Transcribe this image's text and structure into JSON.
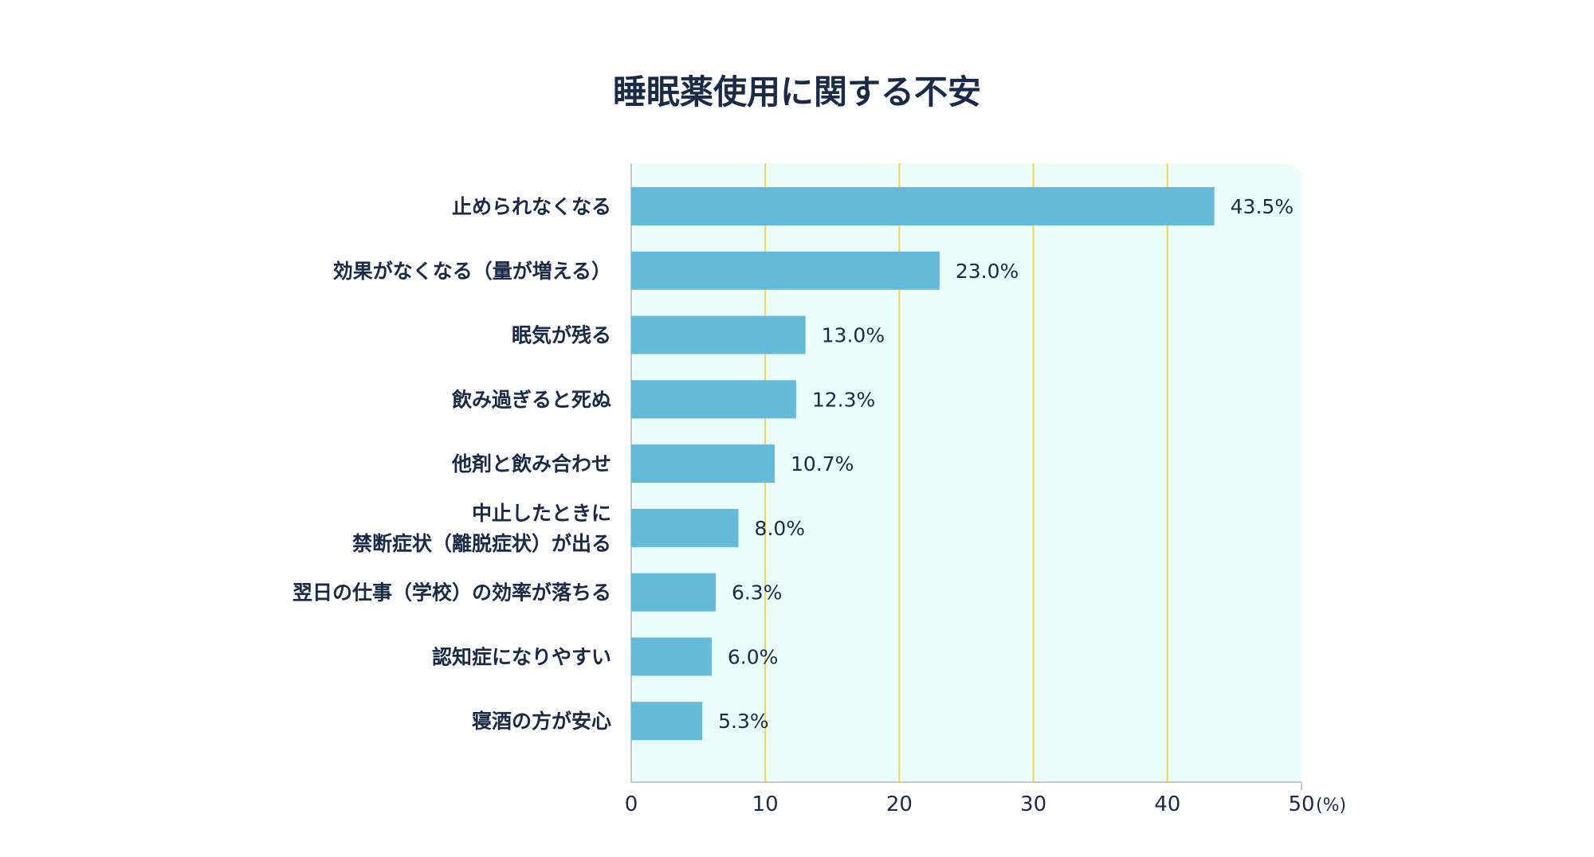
{
  "chart_data": {
    "type": "bar",
    "orientation": "horizontal",
    "title": "睡眠薬使用に関する不安",
    "categories": [
      [
        "止められなくなる"
      ],
      [
        "効果がなくなる（量が増える）"
      ],
      [
        "眠気が残る"
      ],
      [
        "飲み過ぎると死ぬ"
      ],
      [
        "他剤と飲み合わせ"
      ],
      [
        "中止したときに",
        "禁断症状（離脱症状）が出る"
      ],
      [
        "翌日の仕事（学校）の効率が落ちる"
      ],
      [
        "認知症になりやすい"
      ],
      [
        "寝酒の方が安心"
      ]
    ],
    "values": [
      43.5,
      23.0,
      13.0,
      12.3,
      10.7,
      8.0,
      6.3,
      6.0,
      5.3
    ],
    "data_labels": [
      "43.5%",
      "23.0%",
      "13.0%",
      "12.3%",
      "10.7%",
      "8.0%",
      "6.3%",
      "6.0%",
      "5.3%"
    ],
    "xlim": [
      0,
      50
    ],
    "xticks": [
      "0",
      "10",
      "20",
      "30",
      "40",
      "50"
    ],
    "xunit": "(%)",
    "grid": true,
    "colors": {
      "bar": "#64bbd9",
      "plot_background": "#ebfdfd",
      "grid": "#f3d64a",
      "axis": "#c8c8c8",
      "text": "#1b2a47"
    }
  }
}
